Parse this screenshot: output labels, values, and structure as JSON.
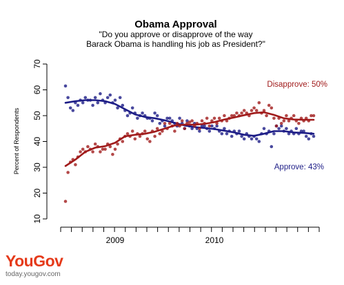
{
  "brand": {
    "logo_text": "YouGov",
    "url_text": "today.yougov.com"
  },
  "chart_data": {
    "type": "scatter",
    "title": "Obama Approval",
    "subtitle_lines": [
      "\"Do you approve or disapprove of the way",
      "Barack Obama is handling his job as President?\""
    ],
    "ylabel": "Percent of Respondents",
    "xlabel": "",
    "ylim": [
      10,
      70
    ],
    "yticks": [
      10,
      20,
      30,
      40,
      50,
      60,
      70
    ],
    "xlim": [
      0,
      100
    ],
    "x_tick_count": 25,
    "x_year_labels": [
      {
        "label": "2009",
        "x": 20
      },
      {
        "label": "2010",
        "x": 60
      }
    ],
    "grid": false,
    "series": [
      {
        "name": "Approve",
        "label": "Approve: 43%",
        "color": "#1c1c86",
        "trend": [
          [
            0,
            55
          ],
          [
            4,
            55.6
          ],
          [
            8,
            56
          ],
          [
            12,
            56
          ],
          [
            16,
            55.6
          ],
          [
            20,
            54.5
          ],
          [
            24,
            52.5
          ],
          [
            28,
            50.5
          ],
          [
            32,
            49.5
          ],
          [
            36,
            49
          ],
          [
            40,
            48.2
          ],
          [
            44,
            47.2
          ],
          [
            48,
            46.2
          ],
          [
            52,
            45.6
          ],
          [
            56,
            45.2
          ],
          [
            60,
            44.8
          ],
          [
            64,
            44.2
          ],
          [
            68,
            43.5
          ],
          [
            72,
            42.6
          ],
          [
            76,
            42.2
          ],
          [
            80,
            43
          ],
          [
            84,
            44
          ],
          [
            88,
            44
          ],
          [
            92,
            43.5
          ],
          [
            96,
            43.3
          ],
          [
            100,
            43
          ]
        ],
        "points": [
          [
            0,
            61.5
          ],
          [
            1,
            57
          ],
          [
            2,
            53
          ],
          [
            3,
            52
          ],
          [
            4,
            55
          ],
          [
            5,
            54
          ],
          [
            6,
            56
          ],
          [
            7,
            55
          ],
          [
            8,
            57
          ],
          [
            9,
            56
          ],
          [
            10,
            56
          ],
          [
            11,
            54
          ],
          [
            12,
            57
          ],
          [
            13,
            55
          ],
          [
            14,
            58.5
          ],
          [
            15,
            56
          ],
          [
            16,
            55
          ],
          [
            17,
            57
          ],
          [
            18,
            58
          ],
          [
            19,
            55
          ],
          [
            20,
            56
          ],
          [
            21,
            53
          ],
          [
            22,
            57
          ],
          [
            23,
            54
          ],
          [
            24,
            52
          ],
          [
            25,
            50
          ],
          [
            26,
            51
          ],
          [
            27,
            53
          ],
          [
            28,
            51
          ],
          [
            29,
            49
          ],
          [
            30,
            50
          ],
          [
            31,
            51
          ],
          [
            32,
            50
          ],
          [
            33,
            49
          ],
          [
            34,
            49
          ],
          [
            35,
            48
          ],
          [
            36,
            51
          ],
          [
            37,
            50
          ],
          [
            38,
            47
          ],
          [
            39,
            48
          ],
          [
            40,
            46
          ],
          [
            41,
            49
          ],
          [
            42,
            49
          ],
          [
            43,
            48
          ],
          [
            44,
            47
          ],
          [
            45,
            46
          ],
          [
            46,
            49
          ],
          [
            47,
            47
          ],
          [
            48,
            45
          ],
          [
            49,
            48
          ],
          [
            50,
            46
          ],
          [
            51,
            45
          ],
          [
            52,
            47
          ],
          [
            53,
            45
          ],
          [
            54,
            44
          ],
          [
            55,
            46
          ],
          [
            56,
            46
          ],
          [
            57,
            45
          ],
          [
            58,
            44
          ],
          [
            59,
            46
          ],
          [
            60,
            45
          ],
          [
            61,
            46
          ],
          [
            62,
            44
          ],
          [
            63,
            43
          ],
          [
            64,
            45
          ],
          [
            65,
            43
          ],
          [
            66,
            44
          ],
          [
            67,
            42
          ],
          [
            68,
            44
          ],
          [
            69,
            43
          ],
          [
            70,
            44
          ],
          [
            71,
            42
          ],
          [
            72,
            41
          ],
          [
            73,
            43
          ],
          [
            74,
            42
          ],
          [
            75,
            41
          ],
          [
            76,
            42
          ],
          [
            77,
            41
          ],
          [
            78,
            40
          ],
          [
            79,
            43
          ],
          [
            80,
            45
          ],
          [
            81,
            43
          ],
          [
            82,
            44
          ],
          [
            83,
            38
          ],
          [
            84,
            43
          ],
          [
            85,
            46
          ],
          [
            86,
            45
          ],
          [
            87,
            46
          ],
          [
            88,
            44
          ],
          [
            89,
            45
          ],
          [
            90,
            43
          ],
          [
            91,
            44
          ],
          [
            92,
            43
          ],
          [
            93,
            45
          ],
          [
            94,
            43
          ],
          [
            95,
            44
          ],
          [
            96,
            44
          ],
          [
            97,
            42
          ],
          [
            98,
            41
          ],
          [
            99,
            43
          ],
          [
            100,
            42
          ]
        ]
      },
      {
        "name": "Disapprove",
        "label": "Disapprove: 50%",
        "color": "#a01a1a",
        "trend": [
          [
            0,
            30.5
          ],
          [
            4,
            33
          ],
          [
            8,
            36
          ],
          [
            12,
            37.6
          ],
          [
            16,
            38.2
          ],
          [
            20,
            39.5
          ],
          [
            24,
            42
          ],
          [
            28,
            42.6
          ],
          [
            32,
            43
          ],
          [
            36,
            43.8
          ],
          [
            40,
            45
          ],
          [
            44,
            46.2
          ],
          [
            48,
            46.5
          ],
          [
            52,
            46.5
          ],
          [
            56,
            46.8
          ],
          [
            60,
            47.5
          ],
          [
            64,
            48.5
          ],
          [
            68,
            49.3
          ],
          [
            72,
            50.2
          ],
          [
            76,
            51
          ],
          [
            80,
            51.3
          ],
          [
            84,
            50.3
          ],
          [
            88,
            49
          ],
          [
            92,
            48.5
          ],
          [
            96,
            48.4
          ],
          [
            100,
            48.4
          ]
        ],
        "points": [
          [
            0,
            16.8
          ],
          [
            1,
            28
          ],
          [
            2,
            32
          ],
          [
            3,
            33
          ],
          [
            4,
            31
          ],
          [
            5,
            34
          ],
          [
            6,
            36
          ],
          [
            7,
            37
          ],
          [
            8,
            36
          ],
          [
            9,
            38
          ],
          [
            10,
            37
          ],
          [
            11,
            36
          ],
          [
            12,
            39
          ],
          [
            13,
            38
          ],
          [
            14,
            36
          ],
          [
            15,
            37
          ],
          [
            16,
            37
          ],
          [
            17,
            39
          ],
          [
            18,
            38
          ],
          [
            19,
            35
          ],
          [
            20,
            37
          ],
          [
            21,
            39
          ],
          [
            22,
            41
          ],
          [
            23,
            40
          ],
          [
            24,
            42
          ],
          [
            25,
            43
          ],
          [
            26,
            42
          ],
          [
            27,
            44
          ],
          [
            28,
            41
          ],
          [
            29,
            43
          ],
          [
            30,
            42
          ],
          [
            31,
            43
          ],
          [
            32,
            44
          ],
          [
            33,
            41
          ],
          [
            34,
            40
          ],
          [
            35,
            44
          ],
          [
            36,
            42
          ],
          [
            37,
            45
          ],
          [
            38,
            43
          ],
          [
            39,
            44
          ],
          [
            40,
            47
          ],
          [
            41,
            45
          ],
          [
            42,
            47
          ],
          [
            43,
            46
          ],
          [
            44,
            44
          ],
          [
            45,
            47
          ],
          [
            46,
            46
          ],
          [
            47,
            48
          ],
          [
            48,
            45
          ],
          [
            49,
            47
          ],
          [
            50,
            47.5
          ],
          [
            51,
            48
          ],
          [
            52,
            46
          ],
          [
            53,
            47
          ],
          [
            54,
            45
          ],
          [
            55,
            48
          ],
          [
            56,
            47
          ],
          [
            57,
            49
          ],
          [
            58,
            46
          ],
          [
            59,
            48
          ],
          [
            60,
            49
          ],
          [
            61,
            47
          ],
          [
            62,
            49
          ],
          [
            63,
            48
          ],
          [
            64,
            50
          ],
          [
            65,
            48
          ],
          [
            66,
            49
          ],
          [
            67,
            50
          ],
          [
            68,
            50
          ],
          [
            69,
            51
          ],
          [
            70,
            50
          ],
          [
            71,
            51
          ],
          [
            72,
            52
          ],
          [
            73,
            51
          ],
          [
            74,
            50
          ],
          [
            75,
            52
          ],
          [
            76,
            53
          ],
          [
            77,
            52
          ],
          [
            78,
            55
          ],
          [
            79,
            51
          ],
          [
            80,
            52
          ],
          [
            81,
            50
          ],
          [
            82,
            54
          ],
          [
            83,
            53
          ],
          [
            84,
            49
          ],
          [
            85,
            46
          ],
          [
            86,
            49
          ],
          [
            87,
            47
          ],
          [
            88,
            48
          ],
          [
            89,
            50
          ],
          [
            90,
            48
          ],
          [
            91,
            49
          ],
          [
            92,
            50
          ],
          [
            93,
            48
          ],
          [
            94,
            47
          ],
          [
            95,
            49
          ],
          [
            96,
            48
          ],
          [
            97,
            49
          ],
          [
            98,
            48
          ],
          [
            99,
            50
          ],
          [
            100,
            50
          ]
        ]
      }
    ]
  }
}
